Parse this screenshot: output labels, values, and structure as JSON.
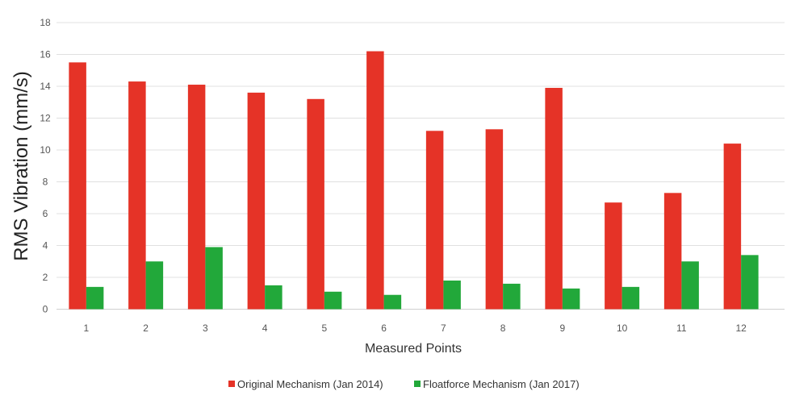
{
  "chart_data": {
    "type": "bar",
    "title": "",
    "xlabel": "Measured Points",
    "ylabel": "RMS Vibration (mm/s)",
    "ylim": [
      0,
      18
    ],
    "yticks": [
      "0",
      "2",
      "4",
      "6",
      "8",
      "10",
      "12",
      "14",
      "16",
      "18"
    ],
    "grid": true,
    "legend_position": "bottom",
    "categories": [
      "1",
      "2",
      "3",
      "4",
      "5",
      "6",
      "7",
      "8",
      "9",
      "10",
      "11",
      "12"
    ],
    "series": [
      {
        "name": "Original Mechanism (Jan 2014)",
        "color": "#e53327",
        "values": [
          15.5,
          14.3,
          14.1,
          13.6,
          13.2,
          16.2,
          11.2,
          11.3,
          13.9,
          6.7,
          7.3,
          10.4
        ]
      },
      {
        "name": "Floatforce Mechanism (Jan 2017)",
        "color": "#22a83a",
        "values": [
          1.4,
          3.0,
          3.9,
          1.5,
          1.1,
          0.9,
          1.8,
          1.6,
          1.3,
          1.4,
          3.0,
          3.4
        ]
      }
    ]
  }
}
